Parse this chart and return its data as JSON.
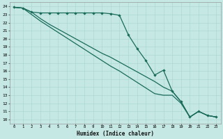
{
  "xlabel": "Humidex (Indice chaleur)",
  "ylabel": "",
  "xlim": [
    -0.5,
    23.5
  ],
  "ylim": [
    9.5,
    24.5
  ],
  "xticks": [
    0,
    1,
    2,
    3,
    4,
    5,
    6,
    7,
    8,
    9,
    10,
    11,
    12,
    13,
    14,
    15,
    16,
    17,
    18,
    19,
    20,
    21,
    22,
    23
  ],
  "yticks": [
    10,
    11,
    12,
    13,
    14,
    15,
    16,
    17,
    18,
    19,
    20,
    21,
    22,
    23,
    24
  ],
  "bg_color": "#c5e8e4",
  "grid_color": "#a8d5d0",
  "line_color": "#1a6b5a",
  "line1_x": [
    0,
    1,
    2,
    3,
    4,
    5,
    6,
    7,
    8,
    9,
    10,
    11,
    12,
    13,
    14,
    15,
    16,
    17,
    18,
    19,
    20,
    21,
    22,
    23
  ],
  "line1_y": [
    23.9,
    23.8,
    23.3,
    23.2,
    23.2,
    23.2,
    23.2,
    23.2,
    23.2,
    23.2,
    23.2,
    23.1,
    22.9,
    20.5,
    18.8,
    17.3,
    15.5,
    16.1,
    13.5,
    12.2,
    10.3,
    11.0,
    10.5,
    10.3
  ],
  "line2_x": [
    0,
    1,
    2,
    3,
    4,
    5,
    6,
    7,
    8,
    9,
    10,
    11,
    12,
    13,
    14,
    15,
    16,
    17,
    18,
    19,
    20,
    21,
    22,
    23
  ],
  "line2_y": [
    23.9,
    23.8,
    23.3,
    22.5,
    21.8,
    21.2,
    20.6,
    20.0,
    19.4,
    18.8,
    18.2,
    17.7,
    17.1,
    16.5,
    15.9,
    15.3,
    14.7,
    14.0,
    13.5,
    12.2,
    10.3,
    11.0,
    10.5,
    10.3
  ],
  "line3_x": [
    0,
    1,
    2,
    3,
    4,
    5,
    6,
    7,
    8,
    9,
    10,
    11,
    12,
    13,
    14,
    15,
    16,
    17,
    18,
    19,
    20,
    21,
    22,
    23
  ],
  "line3_y": [
    23.9,
    23.8,
    23.0,
    22.2,
    21.5,
    20.8,
    20.1,
    19.4,
    18.7,
    18.0,
    17.3,
    16.6,
    16.0,
    15.3,
    14.6,
    13.9,
    13.2,
    13.0,
    13.0,
    12.0,
    10.3,
    11.0,
    10.5,
    10.3
  ]
}
